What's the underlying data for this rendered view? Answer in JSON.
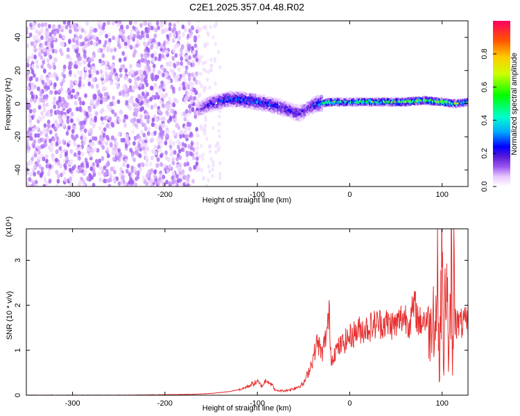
{
  "figure_title": "C2E1.2025.357.04.48.R02",
  "chart_data": [
    {
      "type": "heatmap",
      "title": "",
      "xlabel": "Height of straight line (km)",
      "ylabel": "Frequency (Hz)",
      "xlim": [
        -350,
        128
      ],
      "ylim": [
        -50,
        50
      ],
      "x_ticks": [
        -300,
        -200,
        -100,
        0,
        100
      ],
      "x_tick_labels": [
        "-300",
        "-200",
        "-100",
        "0",
        "100"
      ],
      "y_ticks": [
        -40,
        -20,
        0,
        20,
        40
      ],
      "y_tick_labels": [
        "-40",
        "-20",
        "0",
        "20",
        "40"
      ],
      "colorbar": {
        "label": "Normalized spectral amplitude",
        "range": [
          0,
          1
        ],
        "ticks": [
          0.0,
          0.2,
          0.4,
          0.6,
          0.8
        ],
        "tick_labels": [
          "0.0",
          "0.2",
          "0.4",
          "0.6",
          "0.8"
        ],
        "colormap": [
          "#ffffff",
          "#e8c8ff",
          "#9a55f0",
          "#5a1ad8",
          "#0000ff",
          "#00aaff",
          "#00ffcc",
          "#00ff00",
          "#ccff00",
          "#ffcc00",
          "#ff5500",
          "#ff0060"
        ]
      },
      "noise_region": {
        "x_start": -350,
        "x_end": -165,
        "amplitude_range": [
          0.0,
          0.15
        ]
      },
      "signal_track": {
        "x": [
          -165,
          -150,
          -130,
          -110,
          -90,
          -70,
          -55,
          -45,
          -35,
          -20,
          0,
          20,
          40,
          60,
          80,
          100,
          115,
          128
        ],
        "center_hz": [
          -4,
          0,
          3,
          2,
          0,
          -3,
          -6,
          -3,
          0,
          1,
          1,
          1,
          1,
          1,
          2,
          1,
          0,
          1
        ],
        "peak_amplitude": [
          0.2,
          0.4,
          0.45,
          0.5,
          0.45,
          0.4,
          0.35,
          0.3,
          0.5,
          0.9,
          0.7,
          0.75,
          0.8,
          0.9,
          0.85,
          0.9,
          0.8,
          0.6
        ]
      }
    },
    {
      "type": "line",
      "title": "",
      "xlabel": "Height of straight line (km)",
      "ylabel": "SNR (10 * v/v)",
      "y_scale_label": "(x10⁴)",
      "xlim": [
        -350,
        128
      ],
      "ylim": [
        0,
        3.7
      ],
      "x_ticks": [
        -300,
        -200,
        -100,
        0,
        100
      ],
      "x_tick_labels": [
        "-300",
        "-200",
        "-100",
        "0",
        "100"
      ],
      "y_ticks": [
        0,
        1,
        2,
        3
      ],
      "y_tick_labels": [
        "0",
        "1",
        "2",
        "3"
      ],
      "color": "#e63030",
      "series": [
        {
          "x": [
            -350,
            -300,
            -250,
            -200,
            -170,
            -150,
            -130,
            -115,
            -105,
            -100,
            -95,
            -90,
            -85,
            -80,
            -70,
            -60,
            -50,
            -45,
            -40,
            -35,
            -30,
            -25,
            -22,
            -20,
            -18,
            -15,
            -10,
            -5,
            0,
            10,
            20,
            30,
            40,
            50,
            55,
            60,
            65,
            70,
            75,
            80,
            85,
            88,
            90,
            92,
            95,
            97,
            98,
            100,
            102,
            103,
            105,
            107,
            109,
            110,
            111,
            113,
            115,
            118,
            120,
            125,
            128
          ],
          "y": [
            0.0,
            0.0,
            0.0,
            0.01,
            0.02,
            0.04,
            0.08,
            0.15,
            0.25,
            0.3,
            0.2,
            0.35,
            0.25,
            0.1,
            0.1,
            0.15,
            0.25,
            0.5,
            0.8,
            1.2,
            0.9,
            1.4,
            1.8,
            0.7,
            0.9,
            1.0,
            1.1,
            1.2,
            1.3,
            1.45,
            1.5,
            1.6,
            1.6,
            1.55,
            1.7,
            1.75,
            1.6,
            2.0,
            1.6,
            1.7,
            1.65,
            1.4,
            2.5,
            1.2,
            2.8,
            0.3,
            1.8,
            3.2,
            0.1,
            2.4,
            3.0,
            0.5,
            1.8,
            3.6,
            0.15,
            3.3,
            1.6,
            1.6,
            1.58,
            1.6,
            1.6
          ]
        }
      ]
    }
  ]
}
